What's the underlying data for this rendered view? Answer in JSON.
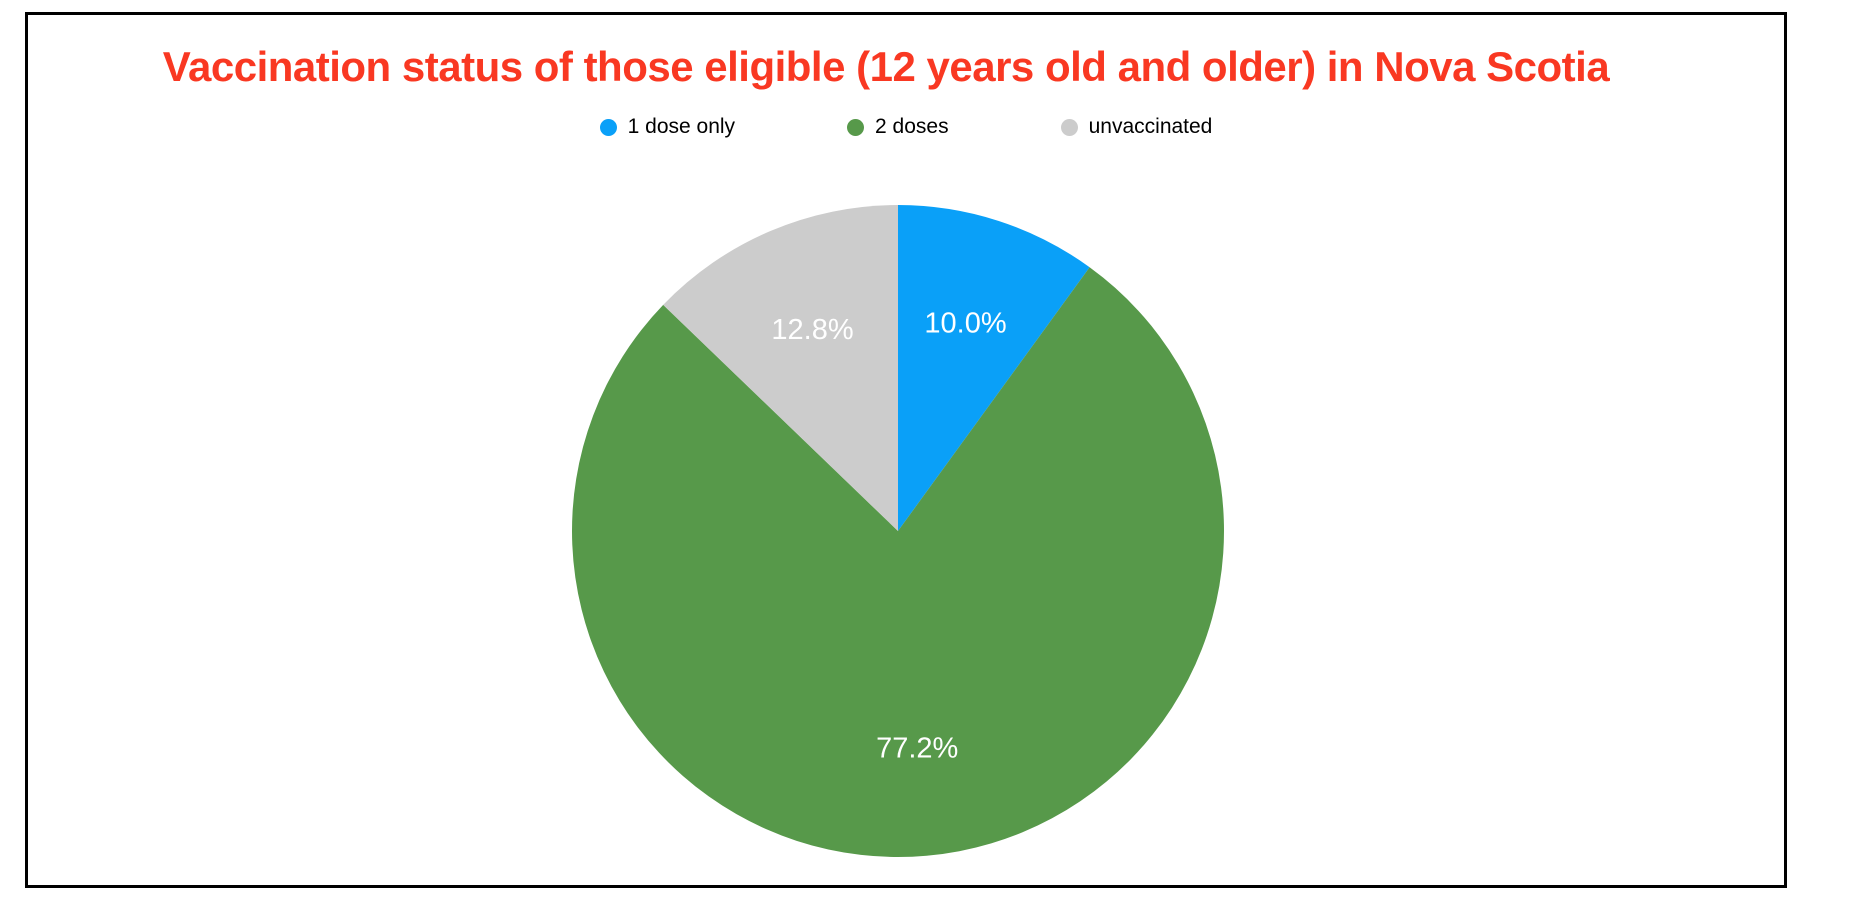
{
  "page": {
    "background": "#ffffff",
    "frame_border_color": "#000000"
  },
  "chart_data": {
    "type": "pie",
    "title": "Vaccination status of those eligible (12 years old and older) in Nova Scotia",
    "title_color": "#f93822",
    "categories": [
      "1 dose only",
      "2 doses",
      "unvaccinated"
    ],
    "values": [
      10.0,
      77.2,
      12.8
    ],
    "slice_labels": [
      "10.0%",
      "77.2%",
      "12.8%"
    ],
    "colors": [
      "#0aa0f8",
      "#57994a",
      "#cccccc"
    ],
    "slice_label_color": "#ffffff",
    "legend_position": "top",
    "direction": "clockwise",
    "start_angle": "top",
    "label_radius_fraction": 0.67
  }
}
